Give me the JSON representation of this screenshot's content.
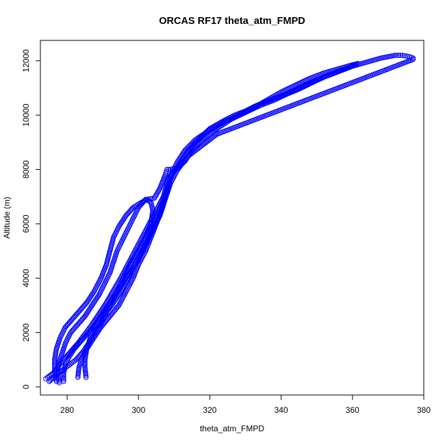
{
  "chart_data": {
    "type": "scatter",
    "title": "ORCAS RF17 theta_atm_FMPD",
    "xlabel": "theta_atm_FMPD",
    "ylabel": "Altitude (m)",
    "xlim": [
      272.5,
      380
    ],
    "ylim": [
      -300,
      12750
    ],
    "xticks": [
      280,
      300,
      320,
      340,
      360,
      380
    ],
    "yticks": [
      0,
      2000,
      4000,
      6000,
      8000,
      10000,
      12000
    ],
    "grid": false,
    "marker": "open-circle",
    "color": "#0000ff",
    "series": [
      {
        "points": [
          [
            274,
            300
          ],
          [
            274.5,
            350
          ],
          [
            275.5,
            450
          ],
          [
            276.5,
            550
          ],
          [
            277.5,
            750
          ],
          [
            279,
            1000
          ],
          [
            281,
            1300
          ],
          [
            283,
            1600
          ],
          [
            285,
            1950
          ],
          [
            287,
            2300
          ],
          [
            289,
            2700
          ],
          [
            291,
            3100
          ],
          [
            293,
            3550
          ],
          [
            295,
            4000
          ],
          [
            297,
            4500
          ],
          [
            299,
            5000
          ],
          [
            301,
            5500
          ],
          [
            303,
            6000
          ],
          [
            305,
            6500
          ],
          [
            307,
            7000
          ],
          [
            308,
            7500
          ],
          [
            309,
            7800
          ],
          [
            310.5,
            8000
          ],
          [
            312,
            8300
          ],
          [
            314,
            8700
          ],
          [
            316,
            9000
          ],
          [
            318,
            9250
          ],
          [
            320,
            9500
          ],
          [
            322,
            9650
          ],
          [
            324,
            9800
          ],
          [
            327,
            10000
          ],
          [
            330,
            10150
          ],
          [
            333,
            10350
          ],
          [
            336,
            10500
          ],
          [
            340,
            10700
          ],
          [
            344,
            10900
          ],
          [
            348,
            11150
          ],
          [
            352,
            11400
          ],
          [
            356,
            11600
          ],
          [
            360,
            11800
          ],
          [
            364,
            11950
          ],
          [
            368,
            12100
          ],
          [
            372,
            12200
          ],
          [
            374,
            12200
          ],
          [
            376,
            12150
          ],
          [
            377,
            12100
          ]
        ]
      },
      {
        "points": [
          [
            377,
            12050
          ],
          [
            374,
            11900
          ],
          [
            370,
            11700
          ],
          [
            366,
            11500
          ],
          [
            362,
            11300
          ],
          [
            358,
            11100
          ],
          [
            354,
            10900
          ],
          [
            350,
            10700
          ],
          [
            346,
            10500
          ],
          [
            342,
            10300
          ],
          [
            338,
            10100
          ],
          [
            334,
            9900
          ],
          [
            330,
            9700
          ],
          [
            326,
            9500
          ],
          [
            322,
            9300
          ],
          [
            318,
            8900
          ],
          [
            314,
            8500
          ],
          [
            311,
            8000
          ],
          [
            309,
            7500
          ],
          [
            307,
            6900
          ],
          [
            305.5,
            6400
          ],
          [
            304,
            5900
          ],
          [
            302.5,
            5400
          ],
          [
            301,
            5000
          ],
          [
            299,
            4500
          ],
          [
            297,
            4000
          ],
          [
            295,
            3500
          ],
          [
            292.5,
            3000
          ],
          [
            290,
            2600
          ],
          [
            288,
            2200
          ],
          [
            286.5,
            1800
          ],
          [
            285.5,
            1400
          ],
          [
            285,
            1000
          ],
          [
            285,
            700
          ],
          [
            285.3,
            350
          ]
        ]
      },
      {
        "points": [
          [
            283,
            350
          ],
          [
            283.3,
            700
          ],
          [
            284,
            1000
          ],
          [
            285.5,
            1400
          ],
          [
            287.5,
            1800
          ],
          [
            289.5,
            2200
          ],
          [
            292,
            2600
          ],
          [
            294.5,
            3000
          ],
          [
            296.5,
            3500
          ],
          [
            298.5,
            4000
          ],
          [
            300,
            4500
          ],
          [
            302,
            5000
          ],
          [
            303.5,
            5500
          ],
          [
            305,
            6000
          ],
          [
            306.5,
            6500
          ],
          [
            307.5,
            7000
          ],
          [
            308.5,
            7500
          ],
          [
            309.5,
            7900
          ],
          [
            311,
            8300
          ],
          [
            313,
            8700
          ],
          [
            316,
            9100
          ],
          [
            320,
            9450
          ],
          [
            324,
            9750
          ],
          [
            328,
            10000
          ],
          [
            332,
            10250
          ],
          [
            336,
            10550
          ],
          [
            340,
            10850
          ],
          [
            344,
            11100
          ],
          [
            348,
            11350
          ],
          [
            352,
            11550
          ],
          [
            356,
            11700
          ],
          [
            360,
            11850
          ],
          [
            361.5,
            11900
          ]
        ]
      },
      {
        "points": [
          [
            361.5,
            11900
          ],
          [
            358,
            11700
          ],
          [
            354,
            11500
          ],
          [
            350,
            11300
          ],
          [
            346,
            11050
          ],
          [
            342,
            10800
          ],
          [
            338,
            10550
          ],
          [
            334,
            10350
          ],
          [
            330,
            10100
          ],
          [
            326,
            9850
          ],
          [
            322,
            9500
          ],
          [
            318,
            9100
          ],
          [
            315,
            8700
          ],
          [
            313,
            8300
          ],
          [
            311,
            8050
          ],
          [
            309,
            8000
          ],
          [
            308,
            8000
          ],
          [
            307.5,
            7800
          ],
          [
            306,
            7300
          ],
          [
            304.5,
            6950
          ],
          [
            302.5,
            6900
          ],
          [
            301,
            6800
          ],
          [
            298.5,
            6600
          ],
          [
            296.5,
            6300
          ],
          [
            294.5,
            5900
          ],
          [
            293,
            5500
          ],
          [
            292,
            5000
          ],
          [
            291,
            4500
          ],
          [
            289.5,
            4000
          ],
          [
            287.5,
            3500
          ],
          [
            285.5,
            3100
          ],
          [
            283.5,
            2800
          ],
          [
            281.5,
            2500
          ],
          [
            279.5,
            2200
          ],
          [
            278,
            1800
          ],
          [
            277,
            1400
          ],
          [
            276.5,
            1000
          ],
          [
            276.5,
            600
          ],
          [
            277,
            200
          ]
        ]
      },
      {
        "points": [
          [
            279,
            200
          ],
          [
            279,
            500
          ],
          [
            279.5,
            800
          ],
          [
            280.5,
            1100
          ],
          [
            282,
            1400
          ],
          [
            284,
            1700
          ],
          [
            286,
            2000
          ],
          [
            288,
            2300
          ],
          [
            290,
            2700
          ],
          [
            292,
            3100
          ],
          [
            294,
            3500
          ],
          [
            296,
            3900
          ],
          [
            298,
            4300
          ],
          [
            300,
            4700
          ],
          [
            301.5,
            5100
          ],
          [
            303,
            5500
          ],
          [
            304.5,
            5900
          ],
          [
            306,
            6300
          ],
          [
            307,
            6700
          ],
          [
            308,
            7100
          ],
          [
            309,
            7500
          ]
        ]
      },
      {
        "points": [
          [
            275,
            200
          ],
          [
            276.5,
            400
          ],
          [
            278.5,
            600
          ],
          [
            280.5,
            800
          ],
          [
            282.5,
            1000
          ],
          [
            284.5,
            1300
          ],
          [
            286,
            1600
          ],
          [
            287.5,
            1900
          ],
          [
            289,
            2200
          ],
          [
            290.5,
            2600
          ],
          [
            292,
            3000
          ],
          [
            293.5,
            3400
          ],
          [
            295,
            3800
          ],
          [
            296.5,
            4200
          ],
          [
            298,
            4600
          ],
          [
            300,
            5000
          ],
          [
            302,
            5500
          ],
          [
            303.5,
            6000
          ],
          [
            304,
            6500
          ],
          [
            303.5,
            6800
          ],
          [
            302,
            6900
          ],
          [
            300,
            6600
          ],
          [
            298.5,
            6200
          ],
          [
            297,
            5800
          ],
          [
            295.5,
            5400
          ],
          [
            294,
            5000
          ],
          [
            293,
            4600
          ],
          [
            292,
            4200
          ],
          [
            290.5,
            3800
          ],
          [
            289,
            3400
          ],
          [
            287,
            3000
          ],
          [
            285,
            2600
          ],
          [
            283,
            2300
          ],
          [
            281,
            2000
          ],
          [
            279.5,
            1600
          ],
          [
            278.5,
            1200
          ],
          [
            277.5,
            800
          ],
          [
            277.5,
            400
          ],
          [
            277.8,
            150
          ]
        ]
      }
    ]
  }
}
